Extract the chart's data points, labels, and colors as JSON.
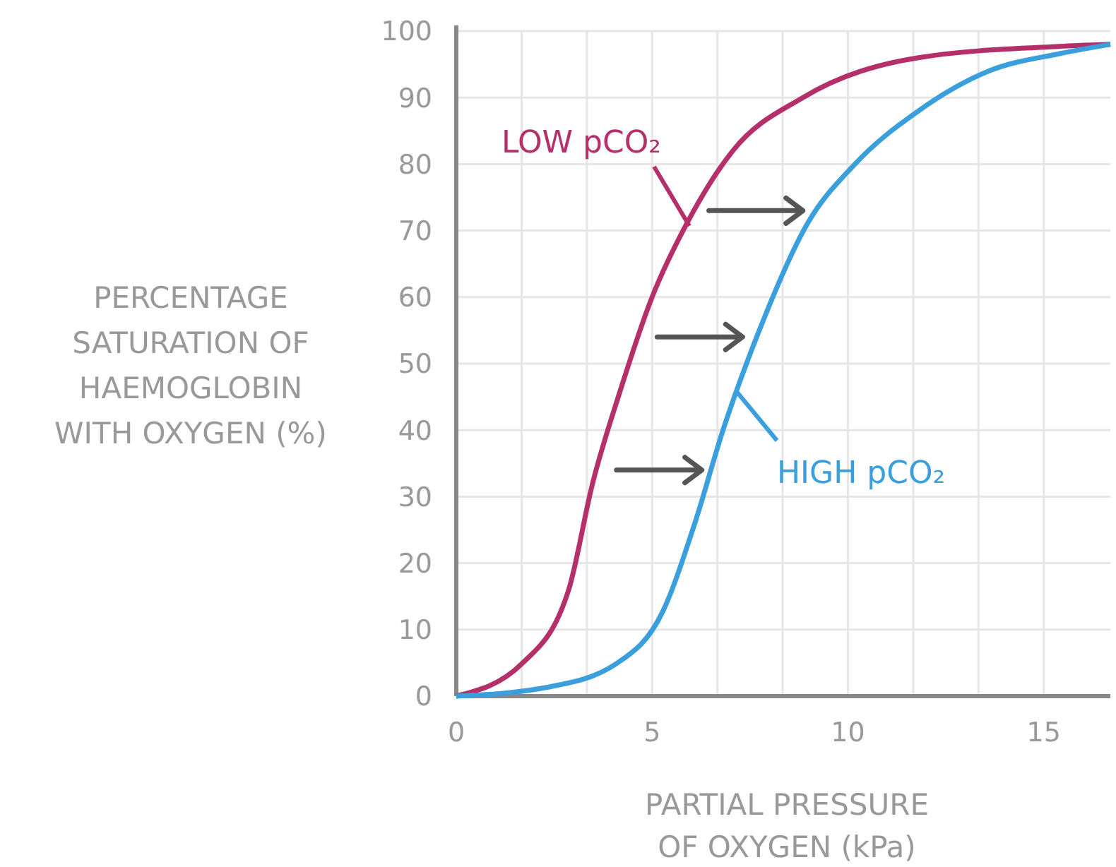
{
  "chart_data": {
    "type": "line",
    "xlabel": "PARTIAL PRESSURE\nOF OXYGEN (kPa)",
    "ylabel": "PERCENTAGE\nSATURATION OF\nHAEMOGLOBIN\nWITH OXYGEN (%)",
    "xlim": [
      0,
      16.7
    ],
    "ylim": [
      0,
      100
    ],
    "xticks": [
      0,
      {
        "value": 1.667,
        "label": null
      },
      {
        "value": 3.333,
        "label": null
      },
      5,
      {
        "value": 6.667,
        "label": null
      },
      {
        "value": 8.333,
        "label": null
      },
      10,
      {
        "value": 11.667,
        "label": null
      },
      {
        "value": 13.333,
        "label": null
      },
      15
    ],
    "yticks": [
      0,
      10,
      20,
      30,
      40,
      50,
      60,
      70,
      80,
      90,
      100
    ],
    "grid": true,
    "marker": "none",
    "line_style": "solid",
    "series": [
      {
        "name": "LOW pCO₂",
        "color": "#b5306b",
        "x": [
          0,
          1.68,
          2.87,
          3.48,
          4.19,
          5.0,
          5.88,
          7.06,
          8.85,
          11.8,
          15.4,
          16.7
        ],
        "values": [
          0,
          4.9,
          16,
          32,
          46,
          60,
          71,
          82,
          90,
          96,
          97.7,
          98
        ]
      },
      {
        "name": "HIGH pCO₂",
        "color": "#3a9fdc",
        "x": [
          0,
          2.29,
          4.09,
          5.27,
          6.09,
          6.81,
          7.67,
          8.96,
          10.18,
          11.8,
          13.6,
          15.4,
          16.7
        ],
        "values": [
          0,
          1.3,
          4.9,
          12.7,
          26,
          40,
          54,
          71,
          80,
          88,
          94,
          96.6,
          98
        ]
      }
    ]
  }
}
